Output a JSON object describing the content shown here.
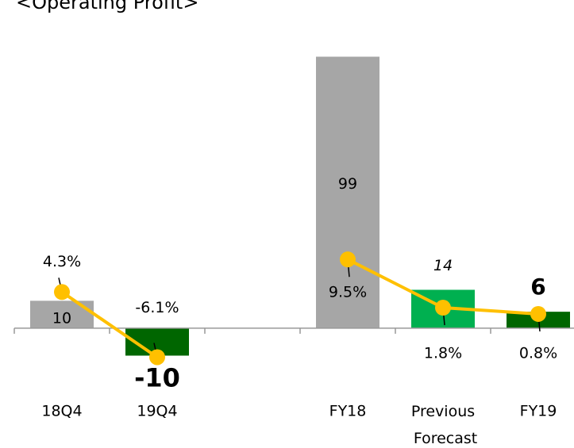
{
  "chart_data": {
    "type": "bar_line",
    "title": "<Operating Profit>",
    "categories": [
      "18Q4",
      "19Q4",
      null,
      "FY18",
      "Previous Forecast",
      "FY19"
    ],
    "series": [
      {
        "type": "bar",
        "values": [
          10,
          -10,
          null,
          99,
          14,
          6
        ],
        "colors": [
          "#a6a6a6",
          "#006600",
          null,
          "#a6a6a6",
          "#00b050",
          "#006600"
        ]
      },
      {
        "type": "line",
        "axis": "y2",
        "color": "#ffc000",
        "values": [
          4.3,
          -6.1,
          null,
          9.5,
          1.8,
          0.8
        ],
        "value_labels": [
          "4.3%",
          "-6.1%",
          null,
          "9.5%",
          "1.8%",
          "0.8%"
        ]
      }
    ],
    "ylim": [
      -22,
      111
    ],
    "y2lim": [
      -11.1,
      47.1
    ]
  }
}
